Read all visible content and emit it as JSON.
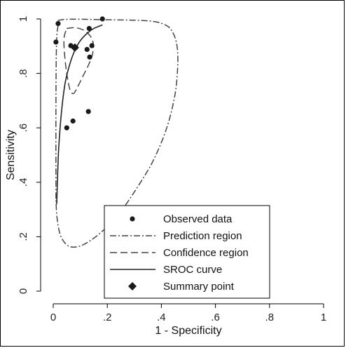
{
  "chart_data": {
    "type": "scatter",
    "xlabel": "1 - Specificity",
    "ylabel": "Sensitivity",
    "xlim": [
      0,
      1
    ],
    "ylim": [
      0,
      1
    ],
    "x_ticks": [
      0,
      0.2,
      0.4,
      0.6,
      0.8,
      1
    ],
    "x_tick_labels": [
      "0",
      ".2",
      ".4",
      ".6",
      ".8",
      "1"
    ],
    "y_ticks": [
      0,
      0.2,
      0.4,
      0.6,
      0.8,
      1
    ],
    "y_tick_labels": [
      "0",
      ".2",
      ".4",
      ".6",
      ".8",
      "1"
    ],
    "grid": false,
    "legend_position": "bottom-center",
    "legend": [
      {
        "key": "observed",
        "label": "Observed data"
      },
      {
        "key": "prediction",
        "label": "Prediction region"
      },
      {
        "key": "confidence",
        "label": "Confidence region"
      },
      {
        "key": "sroc",
        "label": "SROC curve"
      },
      {
        "key": "summary",
        "label": "Summary point"
      }
    ],
    "observed": [
      {
        "x": 0.018,
        "y": 0.983
      },
      {
        "x": 0.01,
        "y": 0.915
      },
      {
        "x": 0.182,
        "y": 1.0
      },
      {
        "x": 0.133,
        "y": 0.965
      },
      {
        "x": 0.065,
        "y": 0.902
      },
      {
        "x": 0.083,
        "y": 0.895
      },
      {
        "x": 0.143,
        "y": 0.902
      },
      {
        "x": 0.125,
        "y": 0.888
      },
      {
        "x": 0.135,
        "y": 0.86
      },
      {
        "x": 0.05,
        "y": 0.6
      },
      {
        "x": 0.073,
        "y": 0.625
      },
      {
        "x": 0.13,
        "y": 0.66
      }
    ],
    "summary_point": {
      "x": 0.08,
      "y": 0.895
    },
    "sroc_curve": [
      {
        "x": 0.013,
        "y": 0.32
      },
      {
        "x": 0.016,
        "y": 0.42
      },
      {
        "x": 0.02,
        "y": 0.52
      },
      {
        "x": 0.027,
        "y": 0.62
      },
      {
        "x": 0.035,
        "y": 0.7
      },
      {
        "x": 0.045,
        "y": 0.77
      },
      {
        "x": 0.06,
        "y": 0.83
      },
      {
        "x": 0.08,
        "y": 0.885
      },
      {
        "x": 0.1,
        "y": 0.92
      },
      {
        "x": 0.125,
        "y": 0.947
      },
      {
        "x": 0.15,
        "y": 0.965
      },
      {
        "x": 0.182,
        "y": 0.978
      }
    ],
    "confidence_region": [
      {
        "x": 0.05,
        "y": 0.965
      },
      {
        "x": 0.08,
        "y": 0.968
      },
      {
        "x": 0.11,
        "y": 0.96
      },
      {
        "x": 0.135,
        "y": 0.94
      },
      {
        "x": 0.148,
        "y": 0.91
      },
      {
        "x": 0.145,
        "y": 0.87
      },
      {
        "x": 0.13,
        "y": 0.83
      },
      {
        "x": 0.11,
        "y": 0.79
      },
      {
        "x": 0.09,
        "y": 0.75
      },
      {
        "x": 0.075,
        "y": 0.726
      },
      {
        "x": 0.062,
        "y": 0.74
      },
      {
        "x": 0.05,
        "y": 0.8
      },
      {
        "x": 0.042,
        "y": 0.87
      },
      {
        "x": 0.04,
        "y": 0.93
      },
      {
        "x": 0.05,
        "y": 0.965
      }
    ],
    "prediction_region": [
      {
        "x": 0.01,
        "y": 0.34
      },
      {
        "x": 0.01,
        "y": 0.7
      },
      {
        "x": 0.012,
        "y": 0.9
      },
      {
        "x": 0.017,
        "y": 0.97
      },
      {
        "x": 0.03,
        "y": 0.997
      },
      {
        "x": 0.2,
        "y": 0.997
      },
      {
        "x": 0.35,
        "y": 0.993
      },
      {
        "x": 0.41,
        "y": 0.98
      },
      {
        "x": 0.44,
        "y": 0.955
      },
      {
        "x": 0.458,
        "y": 0.9
      },
      {
        "x": 0.46,
        "y": 0.82
      },
      {
        "x": 0.45,
        "y": 0.72
      },
      {
        "x": 0.42,
        "y": 0.6
      },
      {
        "x": 0.37,
        "y": 0.48
      },
      {
        "x": 0.31,
        "y": 0.38
      },
      {
        "x": 0.24,
        "y": 0.28
      },
      {
        "x": 0.17,
        "y": 0.21
      },
      {
        "x": 0.11,
        "y": 0.17
      },
      {
        "x": 0.07,
        "y": 0.162
      },
      {
        "x": 0.045,
        "y": 0.175
      },
      {
        "x": 0.025,
        "y": 0.21
      },
      {
        "x": 0.014,
        "y": 0.27
      },
      {
        "x": 0.01,
        "y": 0.34
      }
    ]
  }
}
